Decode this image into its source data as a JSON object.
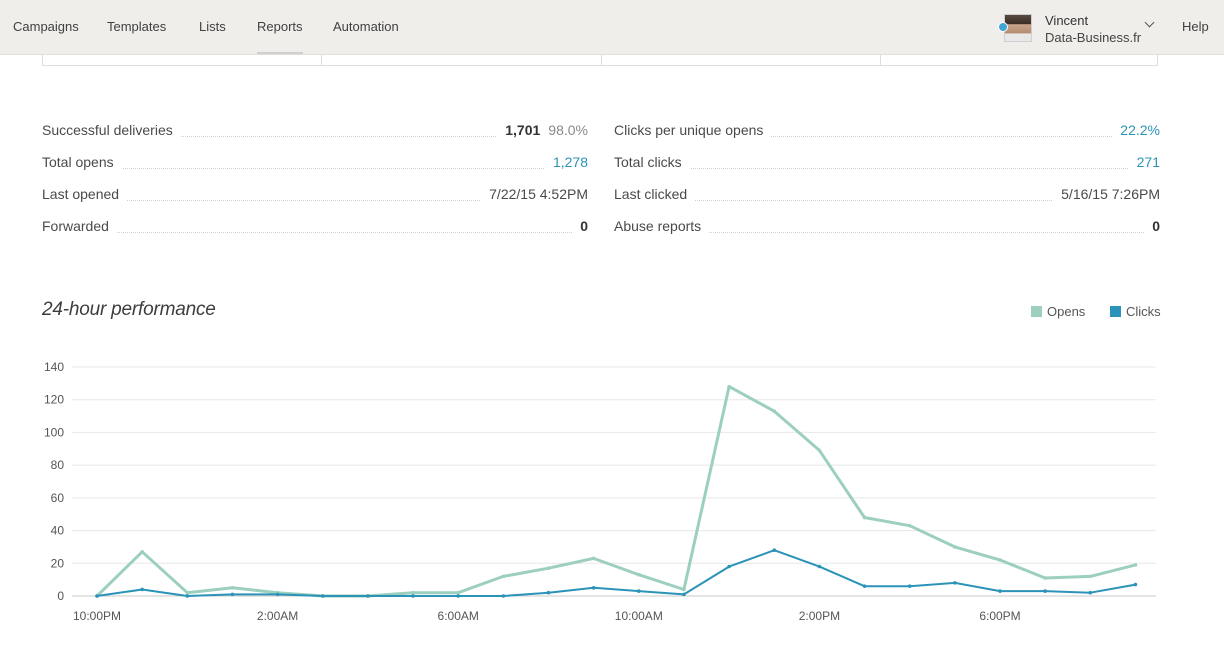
{
  "nav": {
    "items": [
      "Campaigns",
      "Templates",
      "Lists",
      "Reports",
      "Automation"
    ],
    "active": "Reports",
    "help": "Help"
  },
  "profile": {
    "name": "Vincent",
    "org": "Data-Business.fr"
  },
  "stats_left": [
    {
      "label": "Successful deliveries",
      "value": "1,701",
      "extra": "98.0%"
    },
    {
      "label": "Total opens",
      "value": "1,278"
    },
    {
      "label": "Last opened",
      "value": "7/22/15 4:52PM"
    },
    {
      "label": "Forwarded",
      "value": "0"
    }
  ],
  "stats_right": [
    {
      "label": "Clicks per unique opens",
      "value": "22.2%"
    },
    {
      "label": "Total clicks",
      "value": "271"
    },
    {
      "label": "Last clicked",
      "value": "5/16/15 7:26PM"
    },
    {
      "label": "Abuse reports",
      "value": "0"
    }
  ],
  "performance": {
    "title": "24-hour performance"
  },
  "chart_data": {
    "type": "line",
    "title": "24-hour performance",
    "legend_position": "top-right",
    "grid": true,
    "ylim": [
      0,
      140
    ],
    "y_ticks": [
      0,
      20,
      40,
      60,
      80,
      100,
      120,
      140
    ],
    "x_tick_labels": [
      {
        "index": 0,
        "label": "10:00PM"
      },
      {
        "index": 4,
        "label": "2:00AM"
      },
      {
        "index": 8,
        "label": "6:00AM"
      },
      {
        "index": 12,
        "label": "10:00AM"
      },
      {
        "index": 16,
        "label": "2:00PM"
      },
      {
        "index": 20,
        "label": "6:00PM"
      }
    ],
    "hours": 24,
    "series": [
      {
        "name": "Opens",
        "color": "#9ccfbe",
        "values": [
          0,
          27,
          2,
          5,
          2,
          0,
          0,
          2,
          2,
          12,
          17,
          23,
          13,
          4,
          128,
          113,
          89,
          48,
          43,
          30,
          22,
          11,
          12,
          19
        ]
      },
      {
        "name": "Clicks",
        "color": "#2b93b8",
        "values": [
          0,
          4,
          0,
          1,
          1,
          0,
          0,
          0,
          0,
          0,
          2,
          5,
          3,
          1,
          18,
          28,
          18,
          6,
          6,
          8,
          3,
          3,
          2,
          7
        ]
      }
    ]
  }
}
